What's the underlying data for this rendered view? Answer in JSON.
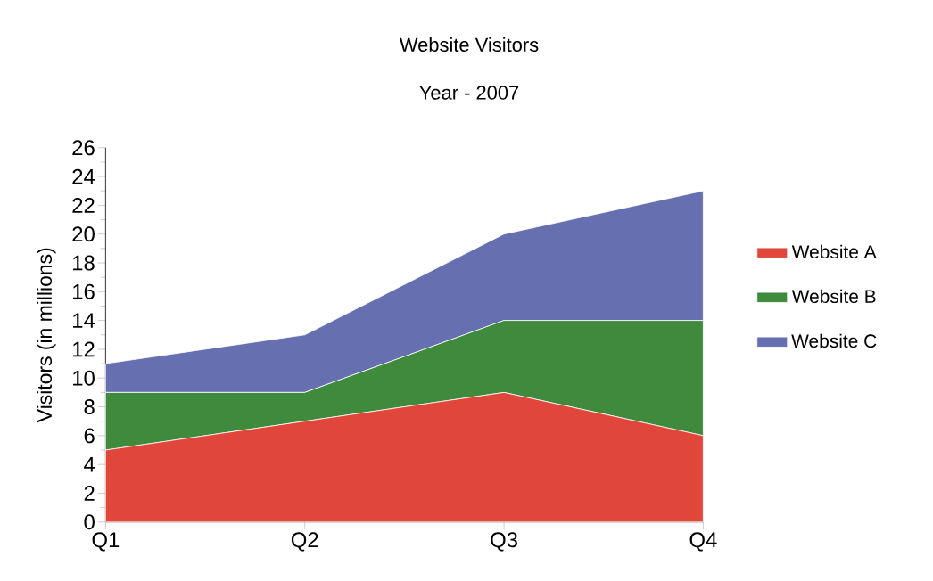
{
  "chart_data": {
    "type": "area",
    "title": "Website Visitors",
    "subtitle": "Year - 2007",
    "ylabel": "Visitors (in millions)",
    "categories": [
      "Q1",
      "Q2",
      "Q3",
      "Q4"
    ],
    "stacked": true,
    "legend": "right",
    "ylim": [
      0,
      26
    ],
    "yticks": [
      0,
      2,
      4,
      6,
      8,
      10,
      12,
      14,
      16,
      18,
      20,
      22,
      24,
      26
    ],
    "series": [
      {
        "name": "Website A",
        "color": "#e0463a",
        "values": [
          5,
          7,
          9,
          6
        ]
      },
      {
        "name": "Website B",
        "color": "#3f8a3c",
        "values": [
          4,
          2,
          5,
          8
        ]
      },
      {
        "name": "Website C",
        "color": "#6670b0",
        "values": [
          2,
          4,
          6,
          9
        ]
      }
    ]
  }
}
